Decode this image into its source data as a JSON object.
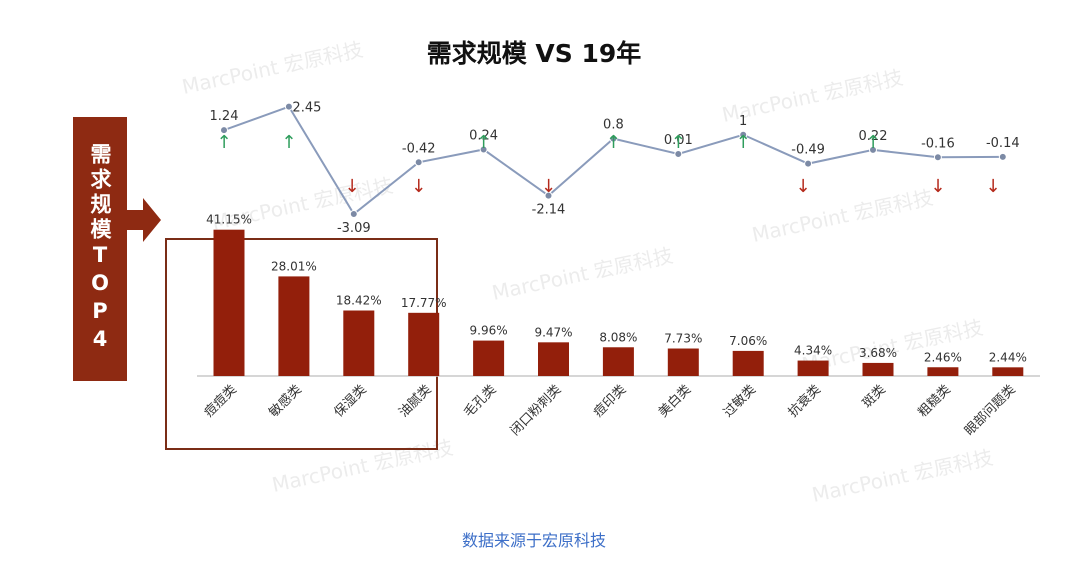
{
  "title": "需求规模 VS 19年",
  "sidebar_label": "需求规模TOP4",
  "source_note": "数据来源于宏原科技",
  "watermark": "MarcPoint 宏原科技",
  "colors": {
    "bar": "#931f0b",
    "line": "#8a9bbb",
    "up": "#2e9d5c",
    "down": "#b52a1c",
    "accent": "#8e2a12"
  },
  "chart_data": [
    {
      "type": "bar",
      "categories": [
        "痘痘类",
        "敏感类",
        "保湿类",
        "油腻类",
        "毛孔类",
        "闭口粉刺类",
        "痘印类",
        "美白类",
        "过敏类",
        "抗衰类",
        "斑类",
        "粗糙类",
        "眼部问题类"
      ],
      "values": [
        41.15,
        28.01,
        18.42,
        17.77,
        9.96,
        9.47,
        8.08,
        7.73,
        7.06,
        4.34,
        3.68,
        2.46,
        2.44
      ],
      "value_labels": [
        "41.15%",
        "28.01%",
        "18.42%",
        "17.77%",
        "9.96%",
        "9.47%",
        "8.08%",
        "7.73%",
        "7.06%",
        "4.34%",
        "3.68%",
        "2.46%",
        "2.44%"
      ],
      "unit": "%",
      "ylim": [
        0,
        45
      ],
      "highlight_top": 4
    },
    {
      "type": "line",
      "categories": [
        "痘痘类",
        "敏感类",
        "保湿类",
        "油腻类",
        "毛孔类",
        "闭口粉刺类",
        "痘印类",
        "美白类",
        "过敏类",
        "抗衰类",
        "斑类",
        "粗糙类",
        "眼部问题类"
      ],
      "values": [
        1.24,
        2.45,
        -3.09,
        -0.42,
        0.24,
        -2.14,
        0.8,
        0.01,
        1,
        -0.49,
        0.22,
        -0.16,
        -0.14
      ],
      "value_labels": [
        "1.24",
        "2.45",
        "-3.09",
        "-0.42",
        "0.24",
        "-2.14",
        "0.8",
        "0.01",
        "1",
        "-0.49",
        "0.22",
        "-0.16",
        "-0.14"
      ],
      "trend_arrows": [
        "up",
        "up",
        "down",
        "down",
        "up",
        "down",
        "up",
        "up",
        "up",
        "down",
        "up",
        "down",
        "down"
      ],
      "ylim": [
        -3.5,
        3
      ]
    }
  ]
}
